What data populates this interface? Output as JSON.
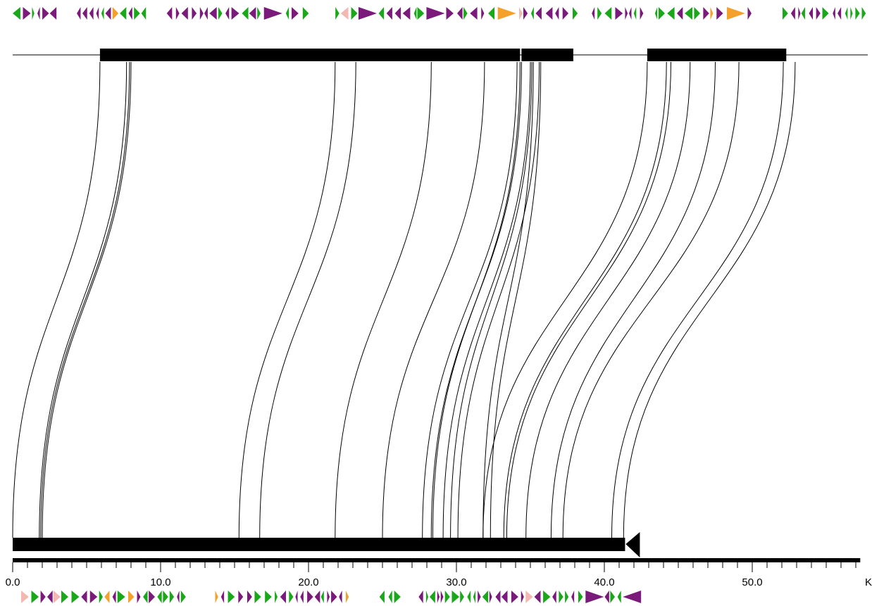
{
  "colors": {
    "purple": "#7a1a7a",
    "green": "#1aa81a",
    "orange": "#f5a02a",
    "pink": "#f2b8b2",
    "black": "#000000"
  },
  "top_genome": {
    "kb_origin": -0.9,
    "blocks": [
      [
        5.0,
        33.4
      ],
      [
        33.5,
        37.0
      ],
      [
        42.0,
        51.4
      ]
    ],
    "end_arrow_kb": 57.4,
    "gene_track": "(|(♦<♦♦(|)|(|(((|((<|(|))(|(|)|)|>>)(|)(|(|>>>>>)>>>|(|)|>>|)|(|)|)|(|(|||((((|(((((|((||||)||)(((|(|)|((||(|||||((||)"
  },
  "bottom_genome": {
    "blocks": [
      [
        0.0,
        41.4
      ]
    ],
    "end_arrow_kb": 42.4
  },
  "scale": {
    "min": 0,
    "max": 57.3,
    "major_step": 10,
    "minor_step": 1,
    "labels": [
      "0.0",
      "10.0",
      "20.0",
      "30.0",
      "40.0",
      "50.0",
      "K"
    ]
  },
  "links": [
    [
      5.0,
      7.0,
      0.0,
      1.9
    ],
    [
      6.8,
      7.1,
      1.8,
      2.0
    ],
    [
      20.9,
      22.3,
      15.3,
      16.7
    ],
    [
      27.4,
      31.0,
      21.8,
      25.0
    ],
    [
      33.2,
      33.5,
      27.7,
      28.3
    ],
    [
      33.4,
      34.1,
      28.4,
      29.1
    ],
    [
      34.2,
      34.7,
      29.6,
      30.1
    ],
    [
      34.3,
      34.8,
      31.8,
      32.3
    ],
    [
      42.0,
      43.3,
      31.8,
      33.2
    ],
    [
      43.6,
      44.9,
      33.4,
      34.7
    ],
    [
      46.6,
      48.2,
      36.4,
      37.2
    ],
    [
      51.2,
      52.0,
      40.5,
      41.3
    ]
  ]
}
